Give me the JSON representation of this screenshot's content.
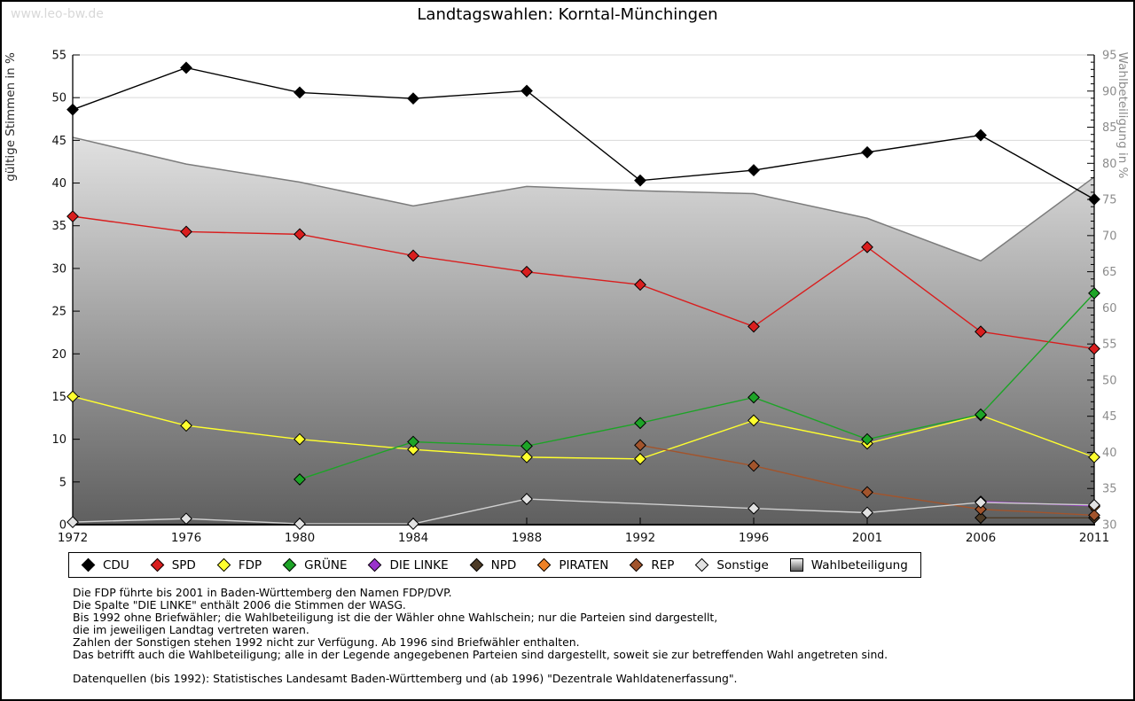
{
  "page": {
    "watermark": "www.leo-bw.de",
    "title": "Landtagswahlen: Korntal-Münchingen"
  },
  "colors": {
    "grid": "#dadada",
    "axis": "#000000",
    "right_axis_text": "#8c8c8c",
    "left_axis_text": "#111111",
    "watermark": "#d8d8d8",
    "area_fill_top": "#fcfcfc",
    "area_fill_bottom": "#5f5f5f",
    "area_line": "#7c7c7c"
  },
  "chart_data": {
    "type": "line",
    "title": "Landtagswahlen: Korntal-Münchingen",
    "categories": [
      "1972",
      "1976",
      "1980",
      "1984",
      "1988",
      "1992",
      "1996",
      "2001",
      "2006",
      "2011"
    ],
    "y_left": {
      "label": "gültige Stimmen in %",
      "min": 0,
      "max": 55,
      "tick": 5
    },
    "y_right": {
      "label": "Wahlbeteiligung in %",
      "min": 30,
      "max": 95,
      "tick": 5,
      "minor_tick": 1
    },
    "grid": "horizontal-left-axis",
    "legend_position": "bottom",
    "series": [
      {
        "name": "CDU",
        "color": "#000000",
        "axis": "left",
        "values": [
          48.6,
          53.5,
          50.6,
          49.9,
          50.8,
          40.3,
          41.5,
          43.6,
          45.6,
          38.1
        ]
      },
      {
        "name": "SPD",
        "color": "#d91e1e",
        "axis": "left",
        "values": [
          36.1,
          34.3,
          34.0,
          31.5,
          29.6,
          28.1,
          23.2,
          32.5,
          22.6,
          20.6
        ]
      },
      {
        "name": "FDP",
        "color": "#ffff2e",
        "axis": "left",
        "values": [
          15.0,
          11.6,
          10.0,
          8.8,
          7.9,
          7.7,
          12.2,
          9.5,
          12.8,
          7.9
        ]
      },
      {
        "name": "GRÜNE",
        "color": "#1da427",
        "axis": "left",
        "values": [
          null,
          null,
          5.3,
          9.7,
          9.2,
          11.9,
          14.9,
          10.0,
          12.9,
          27.1
        ]
      },
      {
        "name": "DIE LINKE",
        "color": "#9932cc",
        "axis": "left",
        "values": [
          null,
          null,
          null,
          null,
          null,
          null,
          null,
          null,
          2.7,
          2.2
        ]
      },
      {
        "name": "NPD",
        "color": "#4d3b26",
        "axis": "left",
        "values": [
          null,
          null,
          null,
          null,
          null,
          null,
          null,
          null,
          0.8,
          0.8
        ]
      },
      {
        "name": "PIRATEN",
        "color": "#ef8125",
        "axis": "left",
        "values": [
          null,
          null,
          null,
          null,
          null,
          null,
          null,
          null,
          null,
          2.1
        ]
      },
      {
        "name": "REP",
        "color": "#a2542c",
        "axis": "left",
        "values": [
          null,
          null,
          null,
          null,
          null,
          9.3,
          6.9,
          3.8,
          1.8,
          1.1
        ]
      },
      {
        "name": "Sonstige",
        "color": "#cfcfcf",
        "marker": "#e2e2e2",
        "axis": "left",
        "connect_gaps": true,
        "values": [
          0.3,
          0.7,
          0.1,
          0.1,
          3.0,
          null,
          1.9,
          1.4,
          2.6,
          2.3
        ]
      }
    ],
    "area_series": {
      "name": "Wahlbeteiligung",
      "axis": "right",
      "style": "gradient-area",
      "values": [
        83.6,
        79.9,
        77.4,
        74.1,
        76.8,
        76.2,
        75.8,
        72.4,
        66.5,
        78.1
      ]
    }
  },
  "footnotes": {
    "lines": [
      "Die FDP führte bis 2001 in Baden-Württemberg den Namen FDP/DVP.",
      "Die Spalte \"DIE LINKE\" enthält 2006 die Stimmen der WASG.",
      "Bis 1992 ohne Briefwähler; die Wahlbeteiligung ist die der Wähler ohne Wahlschein; nur die Parteien sind dargestellt,",
      "die im jeweiligen Landtag vertreten waren.",
      "Zahlen der Sonstigen stehen 1992 nicht zur Verfügung. Ab 1996 sind Briefwähler enthalten.",
      "Das betrifft auch die Wahlbeteiligung; alle in der Legende angegebenen Parteien sind dargestellt, soweit sie zur betreffenden Wahl angetreten sind.",
      "",
      "Datenquellen (bis 1992): Statistisches Landesamt Baden-Württemberg und (ab 1996) \"Dezentrale Wahldatenerfassung\"."
    ]
  }
}
